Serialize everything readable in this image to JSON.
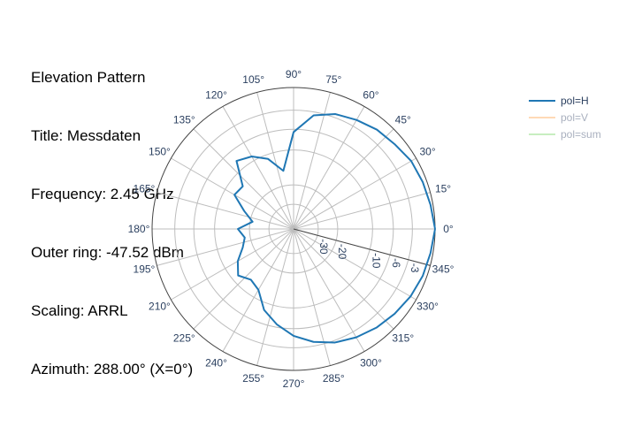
{
  "annotation": {
    "lines": [
      "Elevation Pattern",
      "Title: Messdaten",
      "Frequency: 2.45 GHz",
      "Outer ring: -47.52 dBm",
      "Scaling: ARRL",
      "Azimuth: 288.00° (X=0°)"
    ]
  },
  "colors": {
    "pol_h": "#1f77b4",
    "pol_v": "#ffbb78",
    "pol_sum": "#98df8a",
    "grid": "#bdbdbd",
    "axis_text": "#2a3f5f",
    "legend_inactive_text": "#a0a8b8"
  },
  "chart_data": {
    "type": "line",
    "subtype": "polar",
    "angular_ticks": [
      "0°",
      "15°",
      "30°",
      "45°",
      "60°",
      "75°",
      "90°",
      "105°",
      "120°",
      "135°",
      "150°",
      "165°",
      "180°",
      "195°",
      "210°",
      "225°",
      "240°",
      "255°",
      "270°",
      "285°",
      "300°",
      "315°",
      "330°",
      "345°"
    ],
    "angular_tick_values": [
      0,
      15,
      30,
      45,
      60,
      75,
      90,
      105,
      120,
      135,
      150,
      165,
      180,
      195,
      210,
      225,
      240,
      255,
      270,
      285,
      300,
      315,
      330,
      345
    ],
    "radial_ticks": [
      "-30",
      "-20",
      "-10",
      "-6",
      "-3"
    ],
    "radial_tick_values": [
      -30,
      -20,
      -10,
      -6,
      -3
    ],
    "radial_tick_angle": 345,
    "radial_scale": "ARRL",
    "angular_direction": "counterclockwise",
    "angular_rotation": 0,
    "legend_placement": "top-right",
    "series": [
      {
        "name": "pol=H",
        "visible": true,
        "theta": [
          0,
          10,
          20,
          30,
          40,
          50,
          60,
          70,
          80,
          90,
          100,
          110,
          120,
          130,
          140,
          150,
          160,
          170,
          180,
          190,
          200,
          210,
          220,
          230,
          240,
          250,
          260,
          270,
          280,
          290,
          300,
          310,
          320,
          330,
          340,
          350,
          360
        ],
        "r": [
          0,
          -0.3,
          -0.5,
          -0.7,
          -1.2,
          -1.5,
          -2.0,
          -2.5,
          -3.5,
          -6.5,
          -15,
          -11,
          -9,
          -8,
          -13,
          -12.5,
          -17,
          -21,
          -16,
          -18,
          -16.5,
          -13.5,
          -11.5,
          -13,
          -12,
          -8.5,
          -6.5,
          -4.8,
          -3.6,
          -2.7,
          -2.1,
          -1.6,
          -1.2,
          -0.8,
          -0.5,
          -0.3,
          0
        ]
      },
      {
        "name": "pol=V",
        "visible": false,
        "theta": [],
        "r": []
      },
      {
        "name": "pol=sum",
        "visible": false,
        "theta": [],
        "r": []
      }
    ]
  }
}
